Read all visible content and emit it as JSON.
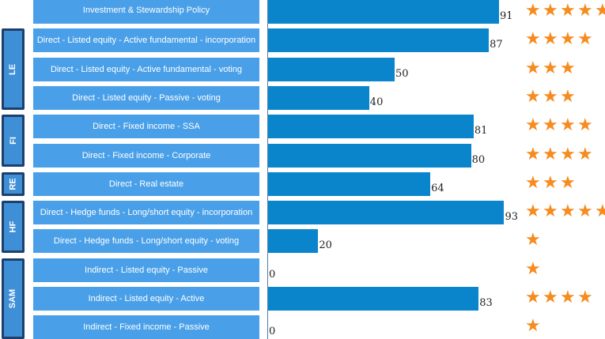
{
  "colors": {
    "bar": "#0a85cc",
    "label_bg": "#4aa0e8",
    "group_bg": "#3f8fd6",
    "group_border": "#1d3f6e",
    "star": "#f68b1f"
  },
  "star_icon": "star-icon",
  "groups": [
    {
      "label": "LE",
      "first_row": 1,
      "last_row": 3
    },
    {
      "label": "FI",
      "first_row": 4,
      "last_row": 5
    },
    {
      "label": "RE",
      "first_row": 6,
      "last_row": 6
    },
    {
      "label": "HF",
      "first_row": 7,
      "last_row": 8
    },
    {
      "label": "SAM",
      "first_row": 9,
      "last_row": 11
    }
  ],
  "chart_data": {
    "type": "bar",
    "orientation": "horizontal",
    "xlim": [
      0,
      100
    ],
    "categories": [
      "Investment & Stewardship Policy",
      "Direct - Listed equity - Active fundamental - incorporation",
      "Direct - Listed equity - Active fundamental - voting",
      "Direct - Listed equity - Passive - voting",
      "Direct - Fixed income - SSA",
      "Direct - Fixed income - Corporate",
      "Direct - Real estate",
      "Direct - Hedge funds - Long/short equity - incorporation",
      "Direct - Hedge funds - Long/short equity - voting",
      "Indirect - Listed equity - Passive",
      "Indirect - Listed equity - Active",
      "Indirect - Fixed income - Passive"
    ],
    "values": [
      91,
      87,
      50,
      40,
      81,
      80,
      64,
      93,
      20,
      0,
      83,
      0
    ],
    "stars": [
      5,
      4,
      3,
      3,
      4,
      4,
      3,
      5,
      1,
      1,
      4,
      1
    ]
  }
}
